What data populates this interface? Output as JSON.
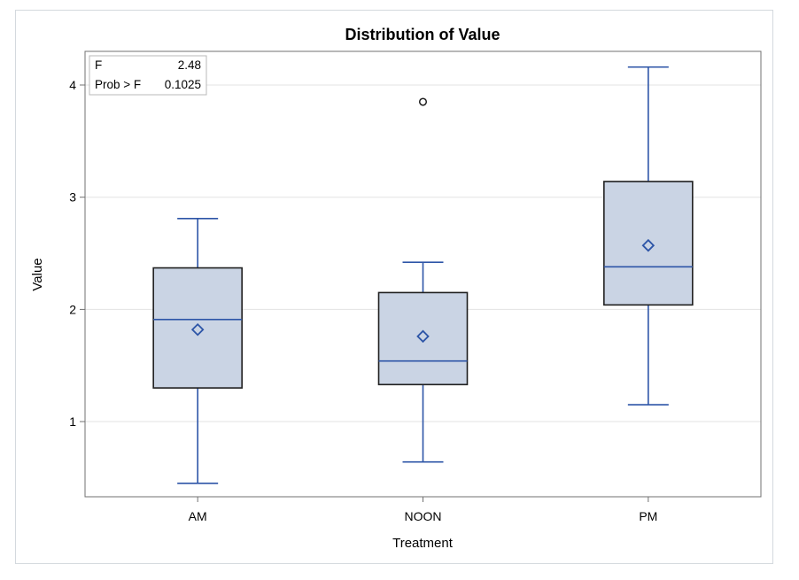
{
  "chart_data": {
    "type": "box",
    "title": "Distribution of Value",
    "xlabel": "Treatment",
    "ylabel": "Value",
    "ylim": [
      0.33,
      4.3
    ],
    "yticks": [
      "1",
      "2",
      "3",
      "4"
    ],
    "grid": true,
    "categories": [
      "AM",
      "NOON",
      "PM"
    ],
    "boxes": [
      {
        "category": "AM",
        "min": 0.45,
        "q1": 1.3,
        "median": 1.91,
        "q3": 2.37,
        "max": 2.81,
        "mean": 1.82,
        "outliers": []
      },
      {
        "category": "NOON",
        "min": 0.64,
        "q1": 1.33,
        "median": 1.54,
        "q3": 2.15,
        "max": 2.42,
        "mean": 1.76,
        "outliers": [
          3.85
        ]
      },
      {
        "category": "PM",
        "min": 1.15,
        "q1": 2.04,
        "median": 2.38,
        "q3": 3.14,
        "max": 4.16,
        "mean": 2.57,
        "outliers": []
      }
    ],
    "inset": {
      "rows": [
        {
          "label": "F",
          "value": "2.48"
        },
        {
          "label": "Prob > F",
          "value": "0.1025"
        }
      ],
      "placement": "top-left"
    },
    "colors": {
      "box_fill": "#cad4e4",
      "box_edge": "#1f1f1f",
      "whisker": "#2d55a7",
      "median": "#2d55a7",
      "mean_marker": "#2d55a7",
      "outlier": "#1f1f1f",
      "grid": "#e3e3e3"
    }
  }
}
